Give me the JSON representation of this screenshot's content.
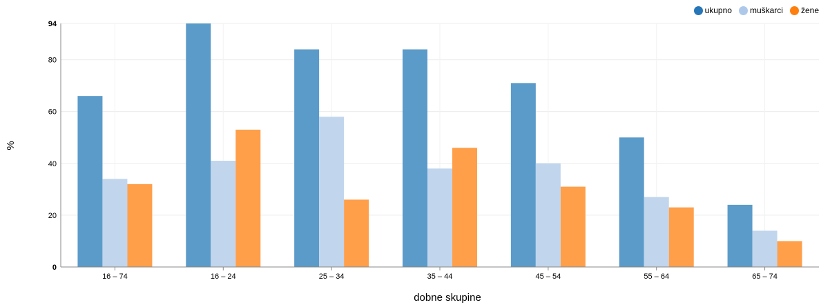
{
  "chart_data": {
    "type": "bar",
    "xlabel": "dobne skupine",
    "ylabel": "%",
    "ylim": [
      0,
      94
    ],
    "yticks": [
      "0",
      "20",
      "40",
      "60",
      "80",
      "94"
    ],
    "categories": [
      "16 – 74",
      "16 – 24",
      "25 – 34",
      "35 – 44",
      "45 – 54",
      "55 – 64",
      "65 – 74"
    ],
    "series": [
      {
        "name": "ukupno",
        "color": "#5b9bc9",
        "values": [
          66,
          94,
          84,
          84,
          71,
          50,
          24
        ]
      },
      {
        "name": "muškarci",
        "color": "#c1d5ed",
        "values": [
          34,
          41,
          58,
          38,
          40,
          27,
          14
        ]
      },
      {
        "name": "žene",
        "color": "#ff9f4a",
        "values": [
          32,
          53,
          26,
          46,
          31,
          23,
          10
        ]
      }
    ],
    "grid": true,
    "legend": "top-right"
  },
  "legend_colors": [
    "#2676b8",
    "#aec8ea",
    "#ff7f0e"
  ]
}
